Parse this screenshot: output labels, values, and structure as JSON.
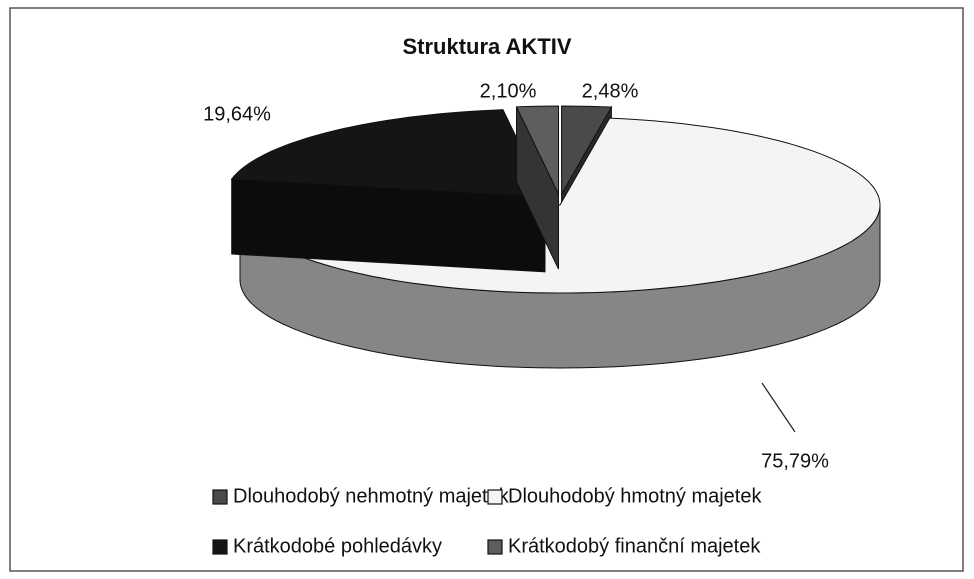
{
  "chart_data": {
    "type": "pie3d",
    "title": "Struktura AKTIV",
    "categories": [
      "Dlouhodobý nehmotný majetek",
      "Dlouhodobý hmotný majetek",
      "Krátkodobé pohledávky",
      "Krátkodobý finanční majetek"
    ],
    "values": [
      2.48,
      75.79,
      19.64,
      2.1
    ],
    "value_labels": [
      "2,48%",
      "75,79%",
      "19,64%",
      "2,10%"
    ],
    "colors": [
      "#4a4a4a",
      "#f4f4f4",
      "#151515",
      "#5e5e5e"
    ],
    "legend": "bottom"
  }
}
